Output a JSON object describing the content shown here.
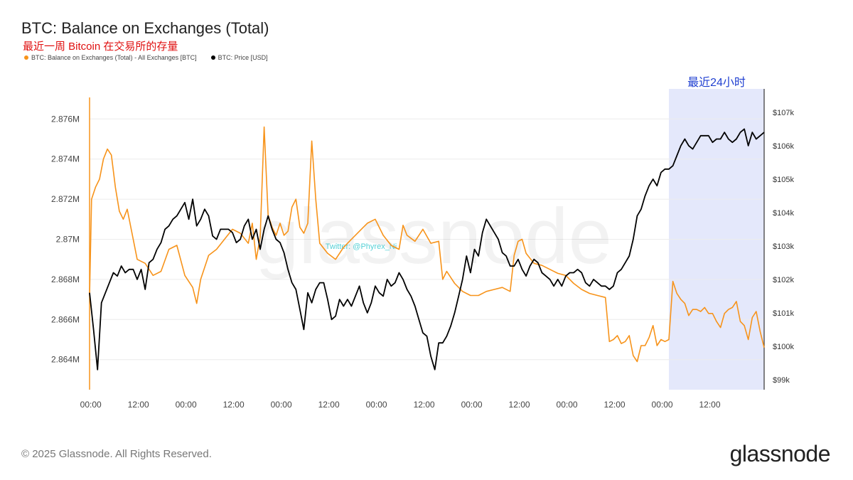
{
  "header": {
    "title": "BTC: Balance on Exchanges (Total)",
    "subtitle": "最近一周 Bitcoin 在交易所的存量"
  },
  "legend": [
    {
      "label": "BTC: Balance on Exchanges (Total) - All Exchanges [BTC]",
      "color": "#f7931a"
    },
    {
      "label": "BTC: Price [USD]",
      "color": "#000000"
    }
  ],
  "footer": {
    "copyright": "© 2025 Glassnode. All Rights Reserved.",
    "logo": "glassnode"
  },
  "watermark": {
    "text": "glassnode",
    "twitter": "Twitter: @Phyrex_Ni"
  },
  "chart_data": {
    "type": "line",
    "x_ticks": [
      "00:00",
      "12:00",
      "00:00",
      "12:00",
      "00:00",
      "12:00",
      "00:00",
      "12:00",
      "00:00",
      "12:00",
      "00:00",
      "12:00",
      "00:00",
      "12:00"
    ],
    "x_range_hours": [
      0,
      170
    ],
    "highlight": {
      "label": "最近24小时",
      "from_hour": 146,
      "to_hour": 170,
      "color": "#e4e8fb"
    },
    "left_axis": {
      "ticks": [
        "2.864M",
        "2.866M",
        "2.868M",
        "2.87M",
        "2.872M",
        "2.874M",
        "2.876M"
      ],
      "ylim": [
        2862500,
        2877500
      ],
      "color": "#f7931a"
    },
    "right_axis": {
      "ticks": [
        "$99k",
        "$100k",
        "$101k",
        "$102k",
        "$103k",
        "$104k",
        "$105k",
        "$106k",
        "$107k"
      ],
      "ylim": [
        98700,
        107700
      ]
    },
    "series": [
      {
        "name": "BTC: Balance on Exchanges (Total) - All Exchanges [BTC]",
        "color": "#f7931a",
        "axis": "left",
        "points": [
          [
            0,
            2867200
          ],
          [
            0.5,
            2872000
          ],
          [
            1.5,
            2872600
          ],
          [
            2.5,
            2873000
          ],
          [
            3.5,
            2874000
          ],
          [
            4.5,
            2874500
          ],
          [
            5.5,
            2874200
          ],
          [
            6.5,
            2872600
          ],
          [
            7.5,
            2871400
          ],
          [
            8.5,
            2871000
          ],
          [
            9.5,
            2871500
          ],
          [
            10.5,
            2870500
          ],
          [
            12,
            2869000
          ],
          [
            14,
            2868800
          ],
          [
            16,
            2868200
          ],
          [
            18,
            2868400
          ],
          [
            20,
            2869500
          ],
          [
            22,
            2869700
          ],
          [
            24,
            2868200
          ],
          [
            26,
            2867600
          ],
          [
            27,
            2866800
          ],
          [
            28,
            2868000
          ],
          [
            30,
            2869200
          ],
          [
            32,
            2869500
          ],
          [
            34,
            2870000
          ],
          [
            36,
            2870500
          ],
          [
            38,
            2870300
          ],
          [
            40,
            2869800
          ],
          [
            41,
            2870800
          ],
          [
            42,
            2869000
          ],
          [
            43,
            2870100
          ],
          [
            44,
            2875600
          ],
          [
            45,
            2871200
          ],
          [
            46,
            2870600
          ],
          [
            47,
            2870200
          ],
          [
            48,
            2870800
          ],
          [
            49,
            2870200
          ],
          [
            50,
            2870400
          ],
          [
            51,
            2871600
          ],
          [
            52,
            2872000
          ],
          [
            53,
            2870600
          ],
          [
            54,
            2870300
          ],
          [
            55,
            2870800
          ],
          [
            56,
            2874900
          ],
          [
            57,
            2872000
          ],
          [
            58,
            2869800
          ],
          [
            60,
            2869300
          ],
          [
            62,
            2869000
          ],
          [
            64,
            2869600
          ],
          [
            66,
            2870000
          ],
          [
            68,
            2870400
          ],
          [
            70,
            2870800
          ],
          [
            72,
            2871000
          ],
          [
            74,
            2870200
          ],
          [
            76,
            2869700
          ],
          [
            78,
            2869500
          ],
          [
            79,
            2870700
          ],
          [
            80,
            2870200
          ],
          [
            82,
            2869900
          ],
          [
            84,
            2870500
          ],
          [
            86,
            2869800
          ],
          [
            88,
            2869900
          ],
          [
            89,
            2868000
          ],
          [
            90,
            2868400
          ],
          [
            92,
            2867800
          ],
          [
            94,
            2867400
          ],
          [
            96,
            2867200
          ],
          [
            98,
            2867200
          ],
          [
            100,
            2867400
          ],
          [
            102,
            2867500
          ],
          [
            104,
            2867600
          ],
          [
            106,
            2867400
          ],
          [
            107,
            2869200
          ],
          [
            108,
            2869900
          ],
          [
            109,
            2870000
          ],
          [
            110,
            2869300
          ],
          [
            112,
            2868800
          ],
          [
            114,
            2868700
          ],
          [
            116,
            2868500
          ],
          [
            118,
            2868300
          ],
          [
            120,
            2868200
          ],
          [
            122,
            2867800
          ],
          [
            124,
            2867500
          ],
          [
            126,
            2867300
          ],
          [
            128,
            2867200
          ],
          [
            130,
            2867100
          ],
          [
            131,
            2864900
          ],
          [
            132,
            2865000
          ],
          [
            133,
            2865200
          ],
          [
            134,
            2864800
          ],
          [
            135,
            2864900
          ],
          [
            136,
            2865200
          ],
          [
            137,
            2864200
          ],
          [
            138,
            2863900
          ],
          [
            139,
            2864700
          ],
          [
            140,
            2864700
          ],
          [
            141,
            2865100
          ],
          [
            142,
            2865700
          ],
          [
            143,
            2864700
          ],
          [
            144,
            2865000
          ],
          [
            145,
            2864900
          ],
          [
            146,
            2865000
          ],
          [
            147,
            2867900
          ],
          [
            148,
            2867300
          ],
          [
            149,
            2867000
          ],
          [
            150,
            2866800
          ],
          [
            151,
            2866200
          ],
          [
            152,
            2866500
          ],
          [
            153,
            2866500
          ],
          [
            154,
            2866400
          ],
          [
            155,
            2866600
          ],
          [
            156,
            2866300
          ],
          [
            157,
            2866300
          ],
          [
            158,
            2865900
          ],
          [
            159,
            2865600
          ],
          [
            160,
            2866300
          ],
          [
            161,
            2866500
          ],
          [
            162,
            2866600
          ],
          [
            163,
            2866900
          ],
          [
            164,
            2865900
          ],
          [
            165,
            2865700
          ],
          [
            166,
            2865000
          ],
          [
            167,
            2866100
          ],
          [
            168,
            2866400
          ],
          [
            169,
            2865400
          ],
          [
            170,
            2864600
          ]
        ]
      },
      {
        "name": "BTC: Price [USD]",
        "color": "#000000",
        "axis": "right",
        "points": [
          [
            0,
            101600
          ],
          [
            1,
            100500
          ],
          [
            2,
            99300
          ],
          [
            3,
            101300
          ],
          [
            4,
            101600
          ],
          [
            5,
            101900
          ],
          [
            6,
            102200
          ],
          [
            7,
            102100
          ],
          [
            8,
            102400
          ],
          [
            9,
            102200
          ],
          [
            10,
            102300
          ],
          [
            11,
            102300
          ],
          [
            12,
            102000
          ],
          [
            13,
            102300
          ],
          [
            14,
            101700
          ],
          [
            15,
            102500
          ],
          [
            16,
            102600
          ],
          [
            17,
            102900
          ],
          [
            18,
            103100
          ],
          [
            19,
            103500
          ],
          [
            20,
            103600
          ],
          [
            21,
            103800
          ],
          [
            22,
            103900
          ],
          [
            23,
            104100
          ],
          [
            24,
            104300
          ],
          [
            25,
            103800
          ],
          [
            26,
            104400
          ],
          [
            27,
            103600
          ],
          [
            28,
            103800
          ],
          [
            29,
            104100
          ],
          [
            30,
            103900
          ],
          [
            31,
            103300
          ],
          [
            32,
            103200
          ],
          [
            33,
            103500
          ],
          [
            34,
            103500
          ],
          [
            35,
            103500
          ],
          [
            36,
            103400
          ],
          [
            37,
            103100
          ],
          [
            38,
            103200
          ],
          [
            39,
            103600
          ],
          [
            40,
            103800
          ],
          [
            41,
            103200
          ],
          [
            42,
            103500
          ],
          [
            43,
            102900
          ],
          [
            44,
            103500
          ],
          [
            45,
            103900
          ],
          [
            46,
            103500
          ],
          [
            47,
            103200
          ],
          [
            48,
            103100
          ],
          [
            49,
            102800
          ],
          [
            50,
            102300
          ],
          [
            51,
            101900
          ],
          [
            52,
            101700
          ],
          [
            53,
            101100
          ],
          [
            54,
            100500
          ],
          [
            55,
            101600
          ],
          [
            56,
            101300
          ],
          [
            57,
            101700
          ],
          [
            58,
            101900
          ],
          [
            59,
            101900
          ],
          [
            60,
            101400
          ],
          [
            61,
            100800
          ],
          [
            62,
            100900
          ],
          [
            63,
            101400
          ],
          [
            64,
            101200
          ],
          [
            65,
            101400
          ],
          [
            66,
            101200
          ],
          [
            67,
            101500
          ],
          [
            68,
            101800
          ],
          [
            69,
            101300
          ],
          [
            70,
            101000
          ],
          [
            71,
            101300
          ],
          [
            72,
            101800
          ],
          [
            73,
            101600
          ],
          [
            74,
            101500
          ],
          [
            75,
            102000
          ],
          [
            76,
            101800
          ],
          [
            77,
            101900
          ],
          [
            78,
            102200
          ],
          [
            79,
            102000
          ],
          [
            80,
            101700
          ],
          [
            81,
            101500
          ],
          [
            82,
            101200
          ],
          [
            83,
            100800
          ],
          [
            84,
            100400
          ],
          [
            85,
            100300
          ],
          [
            86,
            99700
          ],
          [
            87,
            99300
          ],
          [
            88,
            100100
          ],
          [
            89,
            100100
          ],
          [
            90,
            100300
          ],
          [
            91,
            100600
          ],
          [
            92,
            101000
          ],
          [
            93,
            101500
          ],
          [
            94,
            102000
          ],
          [
            95,
            102700
          ],
          [
            96,
            102200
          ],
          [
            97,
            102900
          ],
          [
            98,
            102700
          ],
          [
            99,
            103400
          ],
          [
            100,
            103800
          ],
          [
            101,
            103600
          ],
          [
            102,
            103400
          ],
          [
            103,
            103200
          ],
          [
            104,
            102800
          ],
          [
            105,
            102700
          ],
          [
            106,
            102400
          ],
          [
            107,
            102400
          ],
          [
            108,
            102600
          ],
          [
            109,
            102300
          ],
          [
            110,
            102100
          ],
          [
            111,
            102400
          ],
          [
            112,
            102600
          ],
          [
            113,
            102500
          ],
          [
            114,
            102200
          ],
          [
            115,
            102100
          ],
          [
            116,
            102000
          ],
          [
            117,
            101800
          ],
          [
            118,
            102000
          ],
          [
            119,
            101800
          ],
          [
            120,
            102100
          ],
          [
            121,
            102200
          ],
          [
            122,
            102200
          ],
          [
            123,
            102300
          ],
          [
            124,
            102200
          ],
          [
            125,
            101900
          ],
          [
            126,
            101800
          ],
          [
            127,
            102000
          ],
          [
            128,
            101900
          ],
          [
            129,
            101800
          ],
          [
            130,
            101800
          ],
          [
            131,
            101700
          ],
          [
            132,
            101800
          ],
          [
            133,
            102200
          ],
          [
            134,
            102300
          ],
          [
            135,
            102500
          ],
          [
            136,
            102700
          ],
          [
            137,
            103200
          ],
          [
            138,
            103900
          ],
          [
            139,
            104100
          ],
          [
            140,
            104500
          ],
          [
            141,
            104800
          ],
          [
            142,
            105000
          ],
          [
            143,
            104800
          ],
          [
            144,
            105200
          ],
          [
            145,
            105300
          ],
          [
            146,
            105300
          ],
          [
            147,
            105400
          ],
          [
            148,
            105700
          ],
          [
            149,
            106000
          ],
          [
            150,
            106200
          ],
          [
            151,
            106000
          ],
          [
            152,
            105900
          ],
          [
            153,
            106100
          ],
          [
            154,
            106300
          ],
          [
            155,
            106300
          ],
          [
            156,
            106300
          ],
          [
            157,
            106100
          ],
          [
            158,
            106200
          ],
          [
            159,
            106200
          ],
          [
            160,
            106400
          ],
          [
            161,
            106200
          ],
          [
            162,
            106100
          ],
          [
            163,
            106200
          ],
          [
            164,
            106400
          ],
          [
            165,
            106500
          ],
          [
            166,
            106000
          ],
          [
            167,
            106400
          ],
          [
            168,
            106200
          ],
          [
            169,
            106300
          ],
          [
            170,
            106400
          ]
        ]
      }
    ]
  }
}
